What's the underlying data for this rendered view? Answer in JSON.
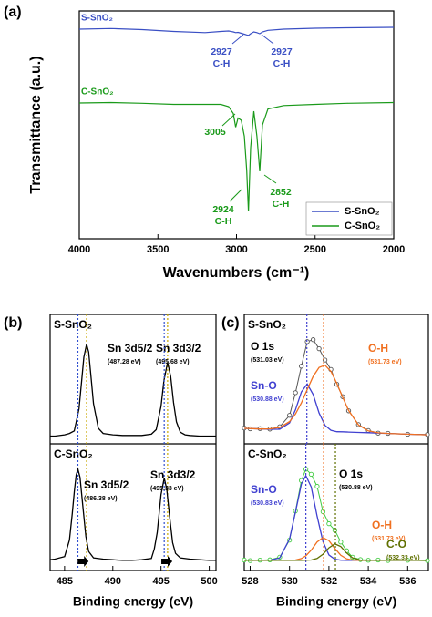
{
  "chart_data": [
    {
      "type": "line",
      "label": "(a)",
      "xlabel": "Wavenumbers (cm⁻¹)",
      "ylabel": "Transmittance (a.u.)",
      "x": [
        4000,
        3800,
        3600,
        3400,
        3200,
        3100,
        3050,
        3020,
        3005,
        2990,
        2970,
        2950,
        2935,
        2924,
        2910,
        2890,
        2870,
        2852,
        2835,
        2800,
        2700,
        2500,
        2300,
        2000
      ],
      "xlim": [
        4000,
        2000
      ],
      "xticks": [
        4000,
        3500,
        3000,
        2500,
        2000
      ],
      "ylim": [
        0,
        100
      ],
      "legend": "lower right",
      "series": [
        {
          "name": "S-SnO₂",
          "color": "#3a4fc4",
          "values": [
            92,
            92.3,
            91.8,
            91,
            90.5,
            91,
            91.2,
            90.8,
            90.5,
            90.6,
            90.2,
            89.8,
            89.5,
            89.3,
            90,
            90.8,
            90.5,
            90,
            90.8,
            91.5,
            92,
            92.4,
            92.6,
            92.8
          ]
        },
        {
          "name": "C-SnO₂",
          "color": "#1a9a1a",
          "values": [
            59.6,
            59.8,
            59.5,
            59,
            59,
            59,
            58,
            55,
            49,
            53,
            52,
            45,
            30,
            12,
            40,
            56,
            45,
            29.6,
            50,
            57,
            58.5,
            59,
            59.5,
            59.8
          ]
        }
      ],
      "annotations": [
        {
          "x": 2927,
          "text": "C-H",
          "color": "#3a4fc4"
        },
        {
          "x": 2927,
          "text": "C-H",
          "color": "#3a4fc4"
        },
        {
          "x": 3005,
          "color": "#1a9a1a"
        },
        {
          "x": 2924,
          "text": "C-H",
          "color": "#1a9a1a"
        },
        {
          "x": 2852,
          "text": "C-H",
          "color": "#1a9a1a"
        }
      ]
    },
    {
      "type": "xps",
      "label": "(b)",
      "xlabel": "Binding energy (eV)",
      "xlim": [
        483.5,
        500.7
      ],
      "xticks": [
        485,
        490,
        495,
        500
      ],
      "ylim": [
        0,
        100
      ],
      "panels": [
        {
          "name": "S-SnO₂",
          "x": [
            483.5,
            484,
            485,
            485.5,
            486,
            486.5,
            486.8,
            487,
            487.28,
            487.5,
            487.8,
            488,
            488.5,
            489,
            490,
            491,
            492,
            493,
            494,
            494.5,
            495,
            495.3,
            495.68,
            496,
            496.3,
            496.6,
            497,
            497.5,
            498,
            499,
            500,
            500.7
          ],
          "series": [
            {
              "color": "#000000",
              "values": [
                6,
                6,
                7,
                8,
                10,
                27,
                51,
                67,
                77,
                71,
                47,
                31,
                12,
                8,
                7,
                6.5,
                6.5,
                6.5,
                7.5,
                11,
                29,
                49,
                63,
                52,
                32,
                17,
                9,
                7,
                6.5,
                6,
                6,
                6
              ]
            }
          ],
          "peaks": [
            {
              "name": "Sn 3d5/2",
              "position": 487.28,
              "position_label": "(487.28 eV)",
              "color": "#c8a800"
            },
            {
              "name": "Sn 3d3/2",
              "position": 495.68,
              "position_label": "(495.68 eV)",
              "color": "#c8a800"
            }
          ]
        },
        {
          "name": "C-SnO₂",
          "x": [
            483.5,
            484,
            485,
            485.5,
            485.8,
            486,
            486.2,
            486.38,
            486.6,
            486.9,
            487.2,
            487.5,
            488,
            489,
            490,
            491,
            492,
            493,
            494,
            494.3,
            494.6,
            495,
            495.33,
            495.6,
            495.9,
            496.2,
            496.5,
            497,
            498,
            499,
            500,
            500.7
          ],
          "series": [
            {
              "color": "#000000",
              "values": [
                8.5,
                9,
                11,
                24,
                45,
                62,
                75.5,
                80,
                73.5,
                50,
                27,
                15,
                10,
                9,
                8.5,
                8,
                8,
                8.5,
                9.5,
                17,
                30,
                60,
                73,
                64,
                42,
                22,
                13.5,
                10,
                9,
                8.5,
                8,
                8
              ]
            }
          ],
          "peaks": [
            {
              "name": "Sn 3d5/2",
              "position": 486.38,
              "position_label": "(486.38 eV)",
              "color": "#3050d0"
            },
            {
              "name": "Sn 3d3/2",
              "position": 495.33,
              "position_label": "(495.33 eV)",
              "color": "#3050d0"
            }
          ]
        }
      ]
    },
    {
      "type": "xps",
      "label": "(c)",
      "xlabel": "Binding energy (eV)",
      "xlim": [
        527.7,
        537.05
      ],
      "xticks": [
        528,
        530,
        532,
        534,
        536
      ],
      "ylim": [
        0,
        100
      ],
      "panels": [
        {
          "name": "S-SnO₂",
          "x": [
            527.7,
            528,
            528.5,
            529,
            529.5,
            530,
            530.3,
            530.6,
            530.9,
            531.2,
            531.5,
            531.8,
            532.1,
            532.4,
            532.7,
            533,
            533.5,
            534,
            534.5,
            535,
            536,
            537
          ],
          "series": [
            {
              "name": "O 1s",
              "color": "#555555",
              "marker": "circle",
              "position_label": "(531.03 eV)",
              "position": 531.03,
              "values": [
                12.2,
                11.6,
                11.8,
                11.4,
                13.2,
                22,
                39.5,
                60,
                79,
                80.5,
                73.5,
                64.8,
                57.5,
                46,
                36.4,
                25.5,
                14.9,
                10.3,
                8.3,
                8.1,
                7.4,
                7.2
              ]
            },
            {
              "name": "Sn-O",
              "color": "#4040d0",
              "position": 530.88,
              "position_label": "(530.88 eV)",
              "values": [
                12,
                11.8,
                11.5,
                11.3,
                11.3,
                16.1,
                26.3,
                40.1,
                46.3,
                38.1,
                23.8,
                14.3,
                10.5,
                9.4,
                9.3,
                9.1,
                8.8,
                8.6,
                8.3,
                8,
                7.5,
                7
              ]
            },
            {
              "name": "O-H",
              "color": "#f07020",
              "position": 531.73,
              "position_label": "(531.73 eV)",
              "values": [
                12,
                11.8,
                11.5,
                11.6,
                12.6,
                17.2,
                23,
                31.6,
                42,
                52.1,
                59.1,
                60.8,
                56,
                46.8,
                35.9,
                25.8,
                14.6,
                10,
                8.5,
                8,
                7.5,
                7
              ]
            }
          ]
        },
        {
          "name": "C-SnO₂",
          "x": [
            527.7,
            528,
            528.5,
            529,
            529.5,
            530,
            530.3,
            530.6,
            530.83,
            531.1,
            531.4,
            531.7,
            532,
            532.3,
            532.6,
            532.9,
            533.2,
            533.6,
            534,
            534.5,
            535,
            536,
            537
          ],
          "series": [
            {
              "name": "O 1s",
              "color": "#44cc44",
              "marker": "circle",
              "position": 530.88,
              "position_label": "(530.88 eV)",
              "values": [
                8.3,
                7.8,
                8.2,
                8.4,
                10.5,
                24,
                47,
                71,
                80,
                76,
                66.5,
                46.5,
                37,
                31.8,
                22.5,
                15.6,
                10.5,
                8.6,
                8.1,
                8.3,
                7.9,
                8.1,
                7.8
              ]
            },
            {
              "name": "Sn-O",
              "color": "#4040d0",
              "position": 530.83,
              "position_label": "(530.83 eV)",
              "values": [
                8,
                8,
                8,
                8.1,
                9.9,
                24.9,
                46.2,
                68.3,
                75,
                65.9,
                43,
                22.7,
                12.3,
                8.9,
                8.1,
                8,
                8,
                8,
                8,
                8,
                8,
                8,
                8
              ]
            },
            {
              "name": "O-H",
              "color": "#f07020",
              "position": 531.73,
              "position_label": "(531.73 eV)",
              "values": [
                8,
                8,
                8,
                8,
                8,
                8,
                8.3,
                9.4,
                11.6,
                16.1,
                22.5,
                26,
                23.6,
                17.4,
                12,
                9.2,
                8.2,
                8,
                8,
                8,
                8,
                8,
                8
              ]
            },
            {
              "name": "C-O",
              "color": "#607000",
              "position": 532.33,
              "position_label": "(532.33 eV)",
              "values": [
                8,
                8,
                8,
                8,
                8,
                8,
                8,
                8,
                8.1,
                8.3,
                9.5,
                12.9,
                17.9,
                21,
                18.9,
                13.8,
                10,
                8.2,
                8,
                8,
                8,
                8,
                8
              ]
            }
          ]
        }
      ]
    }
  ]
}
